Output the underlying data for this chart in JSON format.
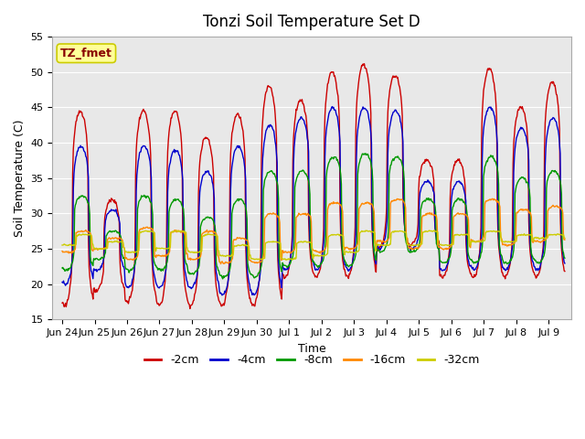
{
  "title": "Tonzi Soil Temperature Set D",
  "xlabel": "Time",
  "ylabel": "Soil Temperature (C)",
  "ylim": [
    15,
    55
  ],
  "xtick_labels": [
    "Jun 24",
    "Jun 25",
    "Jun 26",
    "Jun 27",
    "Jun 28",
    "Jun 29",
    "Jun 30",
    "Jul 1",
    "Jul 2",
    "Jul 3",
    "Jul 4",
    "Jul 5",
    "Jul 6",
    "Jul 7",
    "Jul 8",
    "Jul 9"
  ],
  "xtick_positions": [
    0,
    1,
    2,
    3,
    4,
    5,
    6,
    7,
    8,
    9,
    10,
    11,
    12,
    13,
    14,
    15
  ],
  "series_colors": [
    "#cc0000",
    "#0000cc",
    "#009900",
    "#ff8800",
    "#cccc00"
  ],
  "series_labels": [
    "-2cm",
    "-4cm",
    "-8cm",
    "-16cm",
    "-32cm"
  ],
  "annotation_text": "TZ_fmet",
  "annotation_color": "#880000",
  "annotation_bg": "#ffff99",
  "annotation_border": "#cccc00",
  "background_color": "#e8e8e8",
  "title_fontsize": 12,
  "axis_fontsize": 9,
  "tick_fontsize": 8,
  "legend_fontsize": 9,
  "yticks": [
    15,
    20,
    25,
    30,
    35,
    40,
    45,
    50,
    55
  ],
  "peak_heights_2cm": [
    44.5,
    32.0,
    44.5,
    44.5,
    40.8,
    44.0,
    48.0,
    46.0,
    50.0,
    51.0,
    49.5,
    37.5,
    37.5,
    50.5,
    45.0,
    48.5
  ],
  "trough_depths_2cm": [
    17.0,
    19.0,
    17.5,
    17.0,
    17.0,
    17.0,
    17.0,
    21.0,
    21.0,
    21.0,
    25.0,
    25.5,
    21.0,
    21.0,
    21.0,
    21.0
  ],
  "peak_heights_4cm": [
    39.5,
    30.5,
    39.5,
    39.0,
    36.0,
    39.5,
    42.5,
    43.5,
    45.0,
    45.0,
    44.5,
    34.5,
    34.5,
    45.0,
    42.0,
    43.5
  ],
  "trough_depths_4cm": [
    20.0,
    22.0,
    19.5,
    19.5,
    19.5,
    18.5,
    18.5,
    22.0,
    22.0,
    22.0,
    25.0,
    25.0,
    22.0,
    22.0,
    22.0,
    22.0
  ],
  "peak_heights_8cm": [
    32.5,
    27.5,
    32.5,
    32.0,
    29.5,
    32.0,
    36.0,
    36.0,
    38.0,
    38.5,
    38.0,
    32.0,
    32.0,
    38.0,
    35.0,
    36.0
  ],
  "trough_depths_8cm": [
    22.0,
    23.5,
    22.0,
    22.0,
    21.5,
    21.0,
    21.0,
    22.5,
    22.5,
    22.5,
    24.5,
    24.5,
    23.0,
    23.0,
    23.0,
    23.0
  ],
  "peak_heights_16cm": [
    27.5,
    26.5,
    28.0,
    27.5,
    27.5,
    26.5,
    30.0,
    30.0,
    31.5,
    31.5,
    32.0,
    30.0,
    30.0,
    32.0,
    30.5,
    31.0
  ],
  "trough_depths_16cm": [
    24.5,
    25.0,
    23.5,
    24.0,
    23.5,
    23.0,
    23.0,
    24.5,
    24.5,
    25.0,
    26.0,
    25.0,
    25.0,
    26.0,
    25.5,
    26.0
  ],
  "peak_heights_32cm": [
    27.0,
    26.0,
    27.5,
    27.5,
    27.0,
    25.5,
    26.0,
    26.0,
    27.0,
    27.5,
    27.5,
    27.5,
    27.0,
    27.5,
    27.0,
    27.0
  ],
  "trough_depths_32cm": [
    25.5,
    25.0,
    24.5,
    25.0,
    24.5,
    24.0,
    23.5,
    23.5,
    24.0,
    24.5,
    25.5,
    25.5,
    25.5,
    26.0,
    26.0,
    26.5
  ]
}
